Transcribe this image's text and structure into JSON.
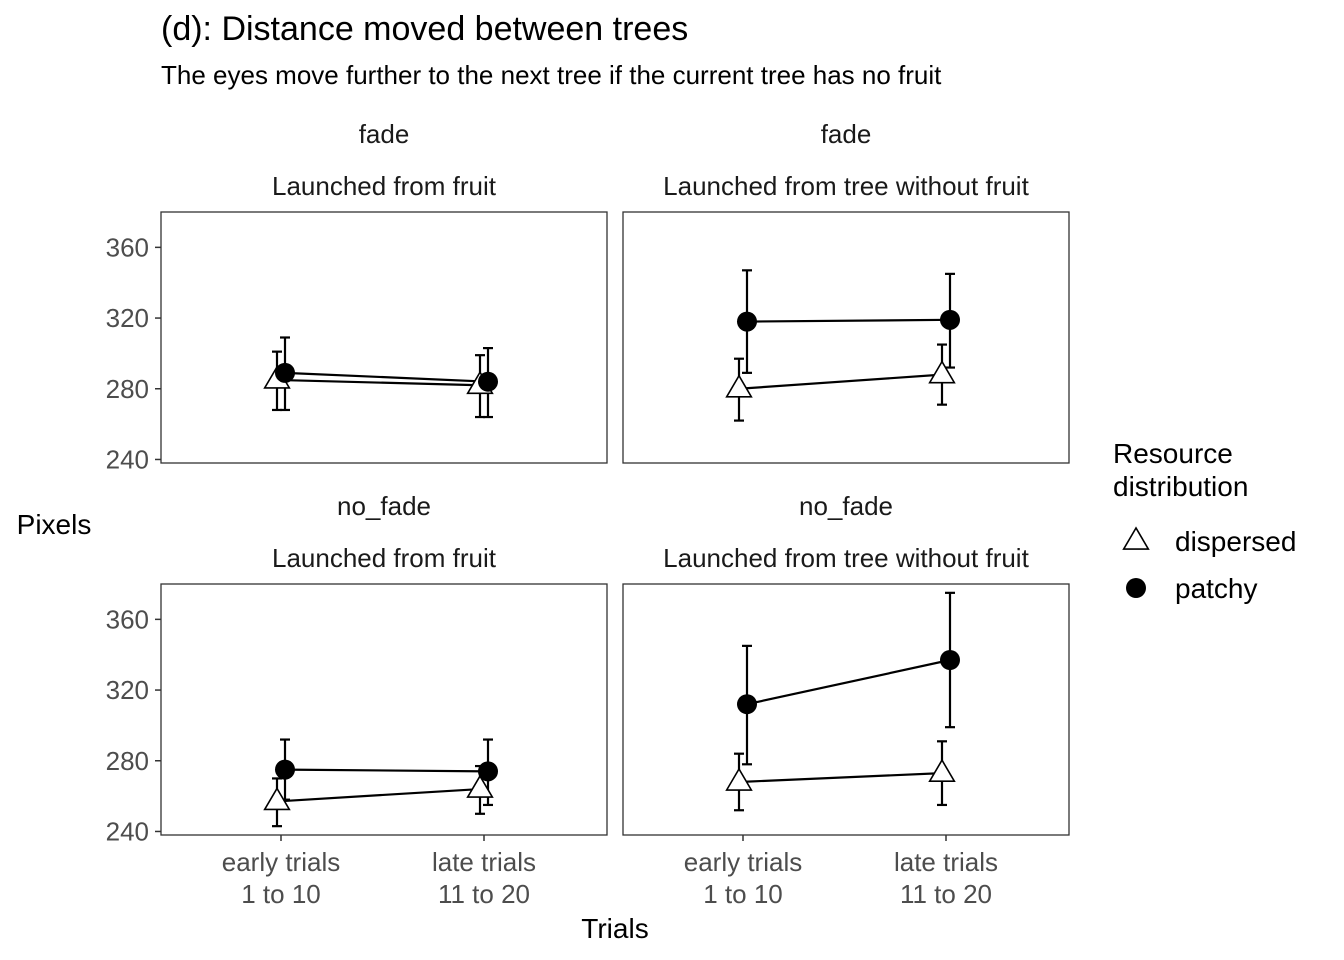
{
  "chart_data": {
    "type": "line",
    "title": "(d): Distance moved between trees",
    "subtitle": "The eyes move further to the next tree if the current tree has no fruit",
    "xlabel": "Trials",
    "ylabel": "Pixels",
    "ylim": [
      238,
      380
    ],
    "yticks": [
      240,
      280,
      320,
      360
    ],
    "categories": [
      [
        "early trials",
        "1 to 10"
      ],
      [
        "late trials",
        "11 to 20"
      ]
    ],
    "legend": {
      "title_lines": [
        "Resource",
        "distribution"
      ],
      "position": "right",
      "entries": [
        {
          "name": "dispersed",
          "shape": "open-triangle"
        },
        {
          "name": "patchy",
          "shape": "filled-circle"
        }
      ]
    },
    "panels": [
      {
        "row_label": "fade",
        "col_label": "Launched from fruit",
        "series": [
          {
            "name": "dispersed",
            "values": [
              285,
              282
            ],
            "lower": [
              268,
              264
            ],
            "upper": [
              301,
              299
            ]
          },
          {
            "name": "patchy",
            "values": [
              289,
              284
            ],
            "lower": [
              268,
              264
            ],
            "upper": [
              309,
              303
            ]
          }
        ]
      },
      {
        "row_label": "fade",
        "col_label": "Launched from tree without fruit",
        "series": [
          {
            "name": "dispersed",
            "values": [
              280,
              288
            ],
            "lower": [
              262,
              271
            ],
            "upper": [
              297,
              305
            ]
          },
          {
            "name": "patchy",
            "values": [
              318,
              319
            ],
            "lower": [
              289,
              292
            ],
            "upper": [
              347,
              345
            ]
          }
        ]
      },
      {
        "row_label": "no_fade",
        "col_label": "Launched from fruit",
        "series": [
          {
            "name": "dispersed",
            "values": [
              257,
              264
            ],
            "lower": [
              243,
              250
            ],
            "upper": [
              270,
              277
            ]
          },
          {
            "name": "patchy",
            "values": [
              275,
              274
            ],
            "lower": [
              258,
              255
            ],
            "upper": [
              292,
              292
            ]
          }
        ]
      },
      {
        "row_label": "no_fade",
        "col_label": "Launched from tree without fruit",
        "series": [
          {
            "name": "dispersed",
            "values": [
              268,
              273
            ],
            "lower": [
              252,
              255
            ],
            "upper": [
              284,
              291
            ]
          },
          {
            "name": "patchy",
            "values": [
              312,
              337
            ],
            "lower": [
              278,
              299
            ],
            "upper": [
              345,
              375
            ]
          }
        ]
      }
    ],
    "grid": false,
    "colors": {
      "line": "#000000",
      "panel_border": "#333333",
      "tick_text": "#4d4d4d"
    }
  }
}
